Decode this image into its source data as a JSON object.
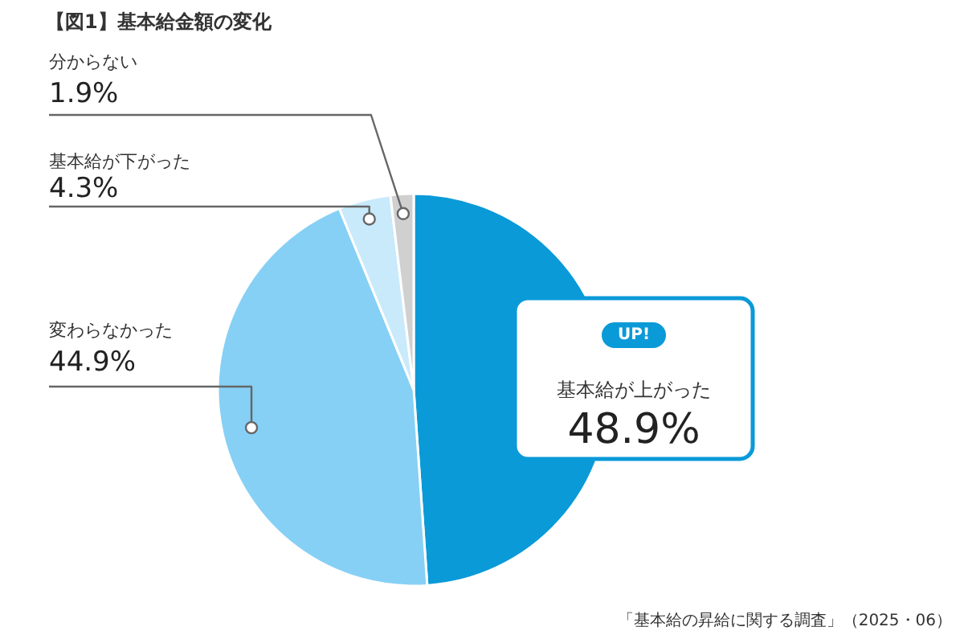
{
  "chart_data": {
    "type": "pie",
    "title": "【図1】基本給金額の変化",
    "categories": [
      "基本給が上がった",
      "変わらなかった",
      "基本給が下がった",
      "分からない"
    ],
    "values": [
      48.9,
      44.9,
      4.3,
      1.9
    ],
    "value_labels": [
      "48.9%",
      "44.9%",
      "4.3%",
      "1.9%"
    ],
    "colors": [
      "#0a9ad8",
      "#86d0f5",
      "#c9eafb",
      "#d0d0d0"
    ],
    "annotations": [
      "UP!",
      "「基本給の昇給に関する調査」（2025・06）"
    ]
  }
}
